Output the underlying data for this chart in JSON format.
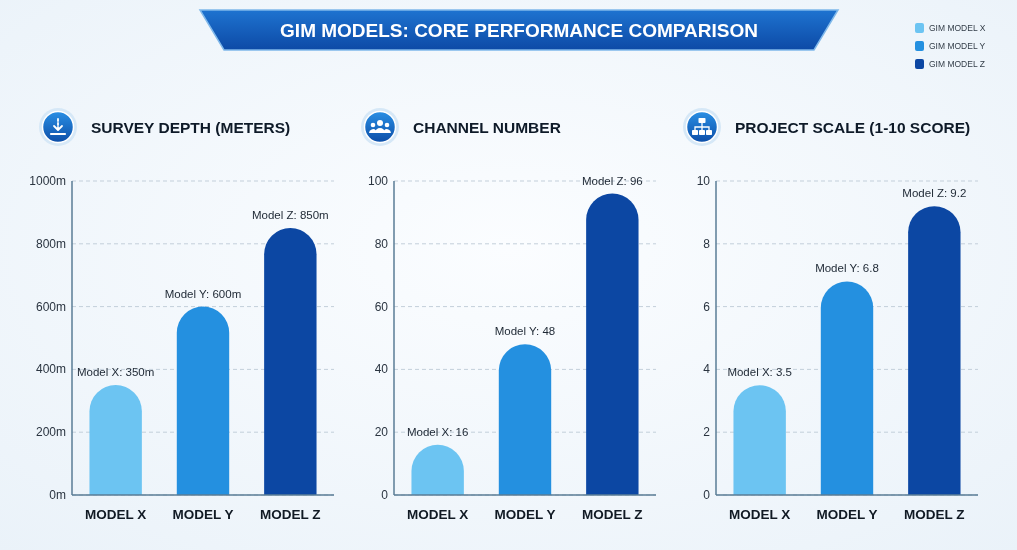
{
  "chart_data": [
    {
      "type": "other",
      "title": "GIM MODELS: CORE PERFORMANCE COMPARISON"
    },
    {
      "type": "bar",
      "title": "SURVEY DEPTH (METERS)",
      "categories": [
        "MODEL X",
        "MODEL Y",
        "MODEL Z"
      ],
      "values": [
        350,
        600,
        850
      ],
      "colors": [
        "#6cc4f2",
        "#2490e0",
        "#0c47a3"
      ],
      "value_labels": [
        "Model X: 350m",
        "Model Y: 600m",
        "Model Z: 850m"
      ],
      "ylim": [
        0,
        1000
      ],
      "yticks": [
        {
          "value": 0,
          "label": "0m"
        },
        {
          "value": 200,
          "label": "200m"
        },
        {
          "value": 400,
          "label": "400m"
        },
        {
          "value": 600,
          "label": "600m"
        },
        {
          "value": 800,
          "label": "800m"
        },
        {
          "value": 1000,
          "label": "1000m"
        }
      ],
      "grid": "y"
    },
    {
      "type": "bar",
      "title": "CHANNEL NUMBER",
      "categories": [
        "MODEL X",
        "MODEL Y",
        "MODEL Z"
      ],
      "values": [
        16,
        48,
        96
      ],
      "colors": [
        "#6cc4f2",
        "#2490e0",
        "#0c47a3"
      ],
      "value_labels": [
        "Model X: 16",
        "Model Y: 48",
        "Model Z: 96"
      ],
      "ylim": [
        0,
        100
      ],
      "yticks": [
        0,
        20,
        40,
        60,
        80,
        100
      ],
      "grid": "y"
    },
    {
      "type": "bar",
      "title": "PROJECT SCALE (1-10 SCORE)",
      "categories": [
        "MODEL X",
        "MODEL Y",
        "MODEL Z"
      ],
      "series": [
        {
          "name": "GIM MODEL X",
          "color": "#6cc4f2",
          "values": [
            3.5,
            null,
            null
          ],
          "value_labels": [
            "Model X: 3.5",
            null,
            null
          ]
        },
        {
          "name": "GIM MODEL Y",
          "color": "#2490e0",
          "values": [
            null,
            6.8,
            null
          ],
          "value_labels": [
            null,
            "Model Y: 6.8",
            null
          ]
        },
        {
          "name": "GIM MODEL Z",
          "color": "#0c47a3",
          "values": [
            null,
            null,
            9.2
          ],
          "value_labels": [
            null,
            null,
            "Model Z: 9.2"
          ]
        }
      ],
      "stacked": true,
      "ylim": [
        0,
        10
      ],
      "yticks": [
        0,
        2,
        4,
        6,
        8,
        10
      ],
      "grid": "y",
      "legend": "top right"
    }
  ]
}
